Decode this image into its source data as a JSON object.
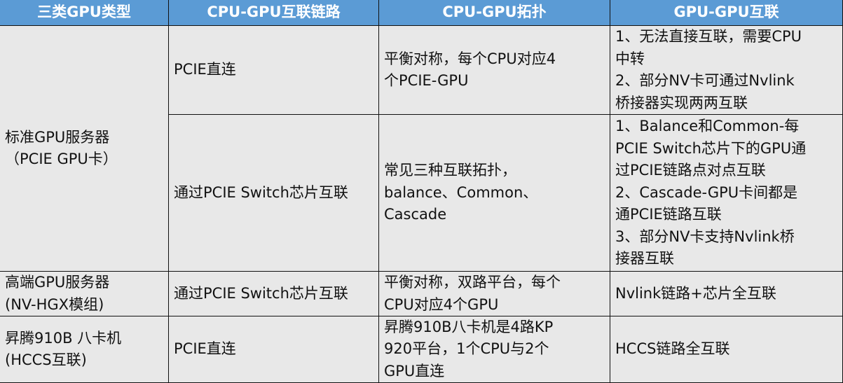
{
  "colors": {
    "header_bg": "#5b9bd5",
    "header_text": "#ffffff",
    "body_bg": "#e8e8e8",
    "border": "#111111"
  },
  "table": {
    "headers": [
      "三类GPU类型",
      "CPU-GPU互联链路",
      "CPU-GPU拓扑",
      "GPU-GPU互联"
    ],
    "cells": [
      {
        "row": 0,
        "col": 0,
        "lines": [
          "标准GPU服务器",
          "（PCIE GPU卡）"
        ]
      },
      {
        "row": 0,
        "col": 1,
        "lines": [
          "PCIE直连"
        ]
      },
      {
        "row": 0,
        "col": 2,
        "lines": [
          "平衡对称，每个CPU对应4",
          "个PCIE-GPU"
        ]
      },
      {
        "row": 0,
        "col": 3,
        "lines": [
          "1、无法直接互联，需要CPU",
          "中转",
          "2、部分NV卡可通过Nvlink",
          "桥接器实现两两互联"
        ]
      },
      {
        "row": 1,
        "col": 1,
        "lines": [
          "通过PCIE Switch芯片互联"
        ]
      },
      {
        "row": 1,
        "col": 2,
        "lines": [
          "常见三种互联拓扑，",
          "balance、Common、",
          "Cascade"
        ]
      },
      {
        "row": 1,
        "col": 3,
        "lines": [
          "1、Balance和Common-每",
          "PCIE Switch芯片下的GPU通",
          "过PCIE链路点对点互联",
          "2、Cascade-GPU卡间都是",
          "通PCIE链路互联",
          "3、部分NV卡支持Nvlink桥",
          "接器互联"
        ]
      },
      {
        "row": 2,
        "col": 0,
        "lines": [
          "高端GPU服务器",
          "(NV-HGX模组)"
        ]
      },
      {
        "row": 2,
        "col": 1,
        "lines": [
          "通过PCIE Switch芯片互联"
        ]
      },
      {
        "row": 2,
        "col": 2,
        "lines": [
          "平衡对称，双路平台，每个",
          "CPU对应4个GPU"
        ]
      },
      {
        "row": 2,
        "col": 3,
        "lines": [
          "Nvlink链路+芯片全互联"
        ]
      },
      {
        "row": 3,
        "col": 0,
        "lines": [
          "昇腾910B 八卡机",
          "(HCCS互联)"
        ]
      },
      {
        "row": 3,
        "col": 1,
        "lines": [
          "PCIE直连"
        ]
      },
      {
        "row": 3,
        "col": 2,
        "lines": [
          "昇腾910B八卡机是4路KP",
          "920平台，1个CPU与2个",
          "GPU直连"
        ]
      },
      {
        "row": 3,
        "col": 3,
        "lines": [
          "HCCS链路全互联"
        ]
      }
    ]
  }
}
